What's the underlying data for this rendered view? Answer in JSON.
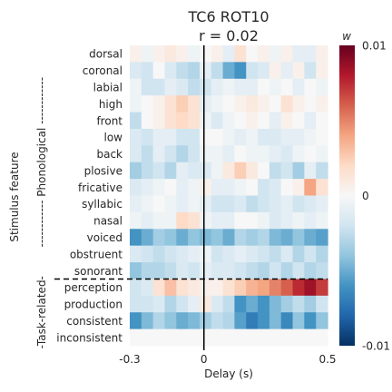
{
  "chart_data": {
    "type": "heatmap",
    "title": "TC6 ROT10",
    "subtitle": "r = 0.02",
    "xlabel": "Delay (s)",
    "ylabel": "Stimulus feature",
    "x_ticks": [
      "-0.3",
      "0",
      "0.5"
    ],
    "xlim": [
      -0.3,
      0.5
    ],
    "zero_line_at": 0,
    "grid": false,
    "groups": [
      {
        "label": "------------ Phonological ------------",
        "rows": [
          "dorsal",
          "coronal",
          "labial",
          "high",
          "front",
          "low",
          "back",
          "plosive",
          "fricative",
          "syllabic",
          "nasal",
          "voiced",
          "obstruent",
          "sonorant"
        ]
      },
      {
        "label": "-Task-related-",
        "rows": [
          "perception",
          "production",
          "consistent",
          "inconsistent"
        ]
      }
    ],
    "divider_between": [
      "sonorant",
      "perception"
    ],
    "colorbar": {
      "label": "w",
      "ticks": [
        "0.01",
        "0",
        "-0.01"
      ],
      "range": [
        -0.01,
        0.01
      ],
      "colors": [
        "#053061",
        "#2166ac",
        "#4393c3",
        "#92c5de",
        "#d1e5f0",
        "#f7f7f7",
        "#fddbc7",
        "#f4a582",
        "#d6604d",
        "#b2182b",
        "#67001f"
      ]
    },
    "x_delays": [
      -0.3,
      -0.25,
      -0.2,
      -0.15,
      -0.1,
      -0.05,
      0,
      0.05,
      0.1,
      0.15,
      0.2,
      0.25,
      0.3,
      0.35,
      0.4,
      0.45,
      0.5
    ],
    "rows": [
      "dorsal",
      "coronal",
      "labial",
      "high",
      "front",
      "low",
      "back",
      "plosive",
      "fricative",
      "syllabic",
      "nasal",
      "voiced",
      "obstruent",
      "sonorant",
      "perception",
      "production",
      "consistent",
      "inconsistent"
    ],
    "values": [
      [
        0.0005,
        -0.0005,
        0.0005,
        0.001,
        0.0005,
        -0.0005,
        0,
        0.0005,
        -0.001,
        0.0015,
        0,
        0.0005,
        -0.0005,
        0.0005,
        -0.001,
        -0.001,
        0.0005
      ],
      [
        -0.0015,
        -0.002,
        0,
        -0.0015,
        -0.0025,
        -0.003,
        -0.001,
        -0.0025,
        -0.005,
        -0.006,
        -0.002,
        -0.0015,
        0.0005,
        -0.001,
        0.0005,
        -0.002,
        0.0005
      ],
      [
        -0.0005,
        -0.002,
        -0.002,
        -0.001,
        -0.0015,
        -0.0025,
        -0.002,
        -0.001,
        -0.0005,
        -0.001,
        -0.001,
        0,
        -0.0005,
        0,
        -0.001,
        0,
        -0.0005
      ],
      [
        -0.0005,
        0,
        0.0005,
        0.0015,
        0.0025,
        0.0015,
        -0.001,
        -0.0005,
        0,
        0.0005,
        0.001,
        0.0005,
        0,
        0.0015,
        0.0005,
        0,
        0.0005
      ],
      [
        -0.0025,
        0,
        0.0005,
        0.0015,
        0.002,
        0.0015,
        -0.0005,
        -0.0015,
        -0.0005,
        0,
        0.0005,
        0,
        -0.001,
        0.0005,
        0,
        -0.001,
        0
      ],
      [
        -0.0015,
        -0.002,
        -0.001,
        -0.001,
        -0.002,
        -0.002,
        0,
        0,
        -0.0005,
        -0.001,
        -0.0005,
        -0.0015,
        -0.0015,
        -0.001,
        -0.001,
        -0.0005,
        0
      ],
      [
        -0.0015,
        -0.0025,
        -0.001,
        -0.002,
        -0.003,
        -0.002,
        -0.0005,
        -0.0005,
        -0.001,
        0,
        -0.0005,
        -0.0005,
        -0.001,
        -0.0015,
        -0.0005,
        0,
        -0.0005
      ],
      [
        -0.0035,
        -0.0025,
        -0.002,
        -0.003,
        -0.001,
        -0.0015,
        -0.0015,
        -0.0005,
        0.001,
        0.0025,
        0.001,
        0,
        -0.0025,
        -0.002,
        -0.0035,
        -0.001,
        -0.0025
      ],
      [
        -0.0015,
        -0.001,
        -0.0005,
        0,
        -0.001,
        -0.0005,
        0.0005,
        -0.001,
        -0.001,
        -0.0005,
        0,
        -0.002,
        -0.0015,
        0,
        0.0005,
        0.004,
        0.0015
      ],
      [
        -0.001,
        -0.0005,
        0,
        -0.0005,
        -0.001,
        -0.0005,
        -0.001,
        -0.002,
        -0.002,
        -0.0015,
        -0.0025,
        -0.002,
        -0.0015,
        -0.001,
        -0.002,
        -0.0015,
        -0.001
      ],
      [
        -0.0005,
        -0.001,
        -0.0005,
        -0.0005,
        0.002,
        0.0015,
        -0.0005,
        -0.001,
        -0.001,
        0,
        0,
        -0.0005,
        -0.0015,
        -0.001,
        -0.0005,
        -0.001,
        -0.0005
      ],
      [
        -0.006,
        -0.005,
        -0.0035,
        -0.004,
        -0.005,
        -0.004,
        -0.0045,
        -0.004,
        -0.005,
        -0.003,
        -0.0035,
        -0.003,
        -0.0045,
        -0.005,
        -0.004,
        -0.005,
        -0.0055
      ],
      [
        -0.0015,
        -0.002,
        -0.0025,
        -0.002,
        -0.0015,
        -0.001,
        -0.0005,
        -0.002,
        -0.0015,
        -0.001,
        -0.0015,
        -0.002,
        -0.0025,
        -0.0015,
        -0.003,
        -0.002,
        -0.003
      ],
      [
        -0.004,
        -0.003,
        -0.003,
        -0.0025,
        -0.0015,
        -0.002,
        -0.001,
        -0.0015,
        -0.0015,
        -0.002,
        -0.0025,
        -0.003,
        -0.002,
        -0.003,
        -0.002,
        -0.003,
        -0.0025
      ],
      [
        -0.002,
        -0.0015,
        0.0015,
        0.003,
        0.0015,
        0.001,
        0.0005,
        0.0005,
        0.0015,
        0.0025,
        0.0035,
        0.004,
        0.005,
        0.006,
        0.0075,
        0.0085,
        0.007
      ],
      [
        -0.002,
        -0.002,
        -0.0015,
        -0.003,
        -0.002,
        -0.001,
        0.001,
        -0.0015,
        -0.0025,
        -0.006,
        -0.005,
        -0.006,
        -0.0045,
        -0.0035,
        -0.0025,
        -0.0035,
        -0.002
      ],
      [
        -0.006,
        -0.0045,
        -0.003,
        -0.004,
        -0.005,
        -0.0045,
        -0.0035,
        -0.0025,
        -0.003,
        -0.0055,
        -0.007,
        -0.006,
        -0.0045,
        -0.0065,
        -0.004,
        -0.006,
        -0.004
      ],
      [
        0,
        0,
        0,
        0,
        0,
        0,
        0,
        0,
        0,
        0,
        0,
        0,
        0,
        0,
        0,
        0,
        0
      ]
    ]
  }
}
